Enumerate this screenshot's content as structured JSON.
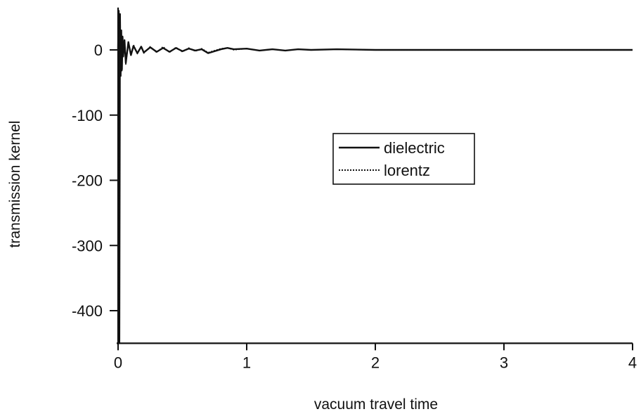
{
  "chart_data": {
    "type": "line",
    "title": "",
    "xlabel": "vacuum travel time",
    "ylabel": "transmission kernel",
    "xlim": [
      0,
      4
    ],
    "ylim": [
      -450,
      65
    ],
    "xticks": [
      0,
      1,
      2,
      3,
      4
    ],
    "yticks": [
      0,
      -100,
      -200,
      -300,
      -400
    ],
    "grid": false,
    "legend": {
      "placement": "center-right",
      "entries": [
        "dielectric",
        "lorentz"
      ]
    },
    "series": [
      {
        "name": "dielectric",
        "style": "solid",
        "x": [
          0,
          0.005,
          0.01,
          0.015,
          0.02,
          0.025,
          0.03,
          0.035,
          0.04,
          0.05,
          0.06,
          0.08,
          0.1,
          0.12,
          0.15,
          0.18,
          0.2,
          0.25,
          0.3,
          0.35,
          0.4,
          0.45,
          0.5,
          0.55,
          0.6,
          0.65,
          0.7,
          0.75,
          0.8,
          0.85,
          0.9,
          1.0,
          1.1,
          1.2,
          1.3,
          1.4,
          1.5,
          1.7,
          2.0,
          2.5,
          3.0,
          3.5,
          4.0
        ],
        "y": [
          0,
          60,
          -450,
          55,
          -40,
          30,
          -30,
          20,
          -10,
          15,
          -20,
          12,
          -8,
          6,
          -5,
          5,
          -4,
          4,
          -3,
          3,
          -3,
          3,
          -2,
          2,
          -1,
          1,
          -5,
          -2,
          1,
          3,
          1,
          2,
          -1,
          1,
          -1,
          1,
          0,
          1,
          0,
          0,
          0,
          0,
          0
        ]
      },
      {
        "name": "lorentz",
        "style": "dotted",
        "x": [
          0,
          0.005,
          0.01,
          0.015,
          0.02,
          0.025,
          0.03,
          0.035,
          0.04,
          0.05,
          0.06,
          0.08,
          0.1,
          0.12,
          0.15,
          0.18,
          0.2,
          0.25,
          0.3,
          0.35,
          0.4,
          0.45,
          0.5,
          0.55,
          0.6,
          0.65,
          0.7,
          0.75,
          0.8,
          0.85,
          0.9,
          1.0,
          1.1,
          1.2,
          1.3,
          1.4,
          1.5,
          1.7,
          2.0,
          2.5,
          3.0,
          3.5,
          4.0
        ],
        "y": [
          0,
          58,
          -445,
          52,
          -38,
          28,
          -32,
          22,
          -12,
          14,
          -22,
          10,
          -6,
          8,
          -6,
          6,
          -5,
          5,
          -4,
          5,
          -4,
          4,
          -3,
          3,
          -2,
          2,
          -4,
          -1,
          2,
          3,
          0,
          2,
          -1,
          1,
          -1,
          1,
          0,
          1,
          0,
          0,
          0,
          0,
          0
        ]
      }
    ]
  }
}
